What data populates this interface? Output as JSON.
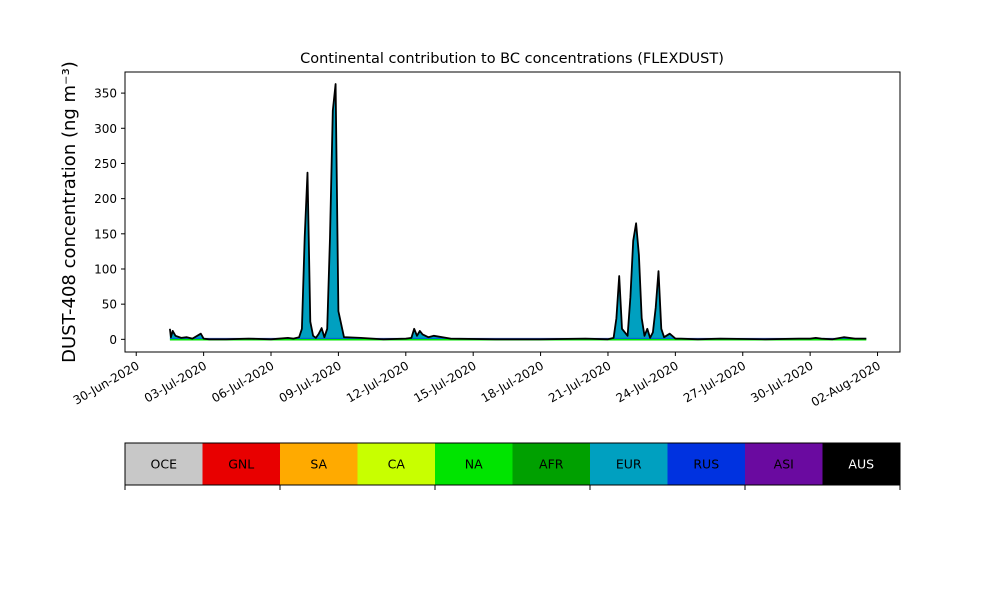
{
  "chart_data": {
    "type": "area",
    "title": "Continental contribution to BC concentrations (FLEXDUST)",
    "ylabel": "DUST-408 concentration (ng m⁻³)",
    "xlabel": "",
    "ylim": [
      -18,
      380
    ],
    "xlim": [
      "2020-06-29T12:00",
      "2020-08-03T00:00"
    ],
    "yticks": [
      0,
      50,
      100,
      150,
      200,
      250,
      300,
      350
    ],
    "xticks": [
      "30-Jun-2020",
      "03-Jul-2020",
      "06-Jul-2020",
      "09-Jul-2020",
      "12-Jul-2020",
      "15-Jul-2020",
      "18-Jul-2020",
      "21-Jul-2020",
      "24-Jul-2020",
      "27-Jul-2020",
      "30-Jul-2020",
      "02-Aug-2020"
    ],
    "dominant_series": "EUR",
    "x": [
      "2020-07-01T12:00",
      "2020-07-01T13:00",
      "2020-07-01T15:00",
      "2020-07-01T18:00",
      "2020-07-02T00:00",
      "2020-07-02T06:00",
      "2020-07-02T12:00",
      "2020-07-02T21:00",
      "2020-07-03T00:00",
      "2020-07-03T06:00",
      "2020-07-04T00:00",
      "2020-07-05T00:00",
      "2020-07-06T00:00",
      "2020-07-06T18:00",
      "2020-07-07T00:00",
      "2020-07-07T06:00",
      "2020-07-07T09:00",
      "2020-07-07T12:00",
      "2020-07-07T15:00",
      "2020-07-07T18:00",
      "2020-07-07T21:00",
      "2020-07-08T00:00",
      "2020-07-08T03:00",
      "2020-07-08T06:00",
      "2020-07-08T09:00",
      "2020-07-08T12:00",
      "2020-07-08T15:00",
      "2020-07-08T18:00",
      "2020-07-08T21:00",
      "2020-07-09T00:00",
      "2020-07-09T06:00",
      "2020-07-10T00:00",
      "2020-07-11T00:00",
      "2020-07-12T00:00",
      "2020-07-12T06:00",
      "2020-07-12T09:00",
      "2020-07-12T12:00",
      "2020-07-12T15:00",
      "2020-07-12T18:00",
      "2020-07-13T00:00",
      "2020-07-13T06:00",
      "2020-07-14T00:00",
      "2020-07-16T00:00",
      "2020-07-18T00:00",
      "2020-07-20T00:00",
      "2020-07-21T00:00",
      "2020-07-21T06:00",
      "2020-07-21T09:00",
      "2020-07-21T12:00",
      "2020-07-21T15:00",
      "2020-07-21T21:00",
      "2020-07-22T00:00",
      "2020-07-22T03:00",
      "2020-07-22T06:00",
      "2020-07-22T09:00",
      "2020-07-22T12:00",
      "2020-07-22T15:00",
      "2020-07-22T18:00",
      "2020-07-22T21:00",
      "2020-07-23T00:00",
      "2020-07-23T03:00",
      "2020-07-23T06:00",
      "2020-07-23T09:00",
      "2020-07-23T12:00",
      "2020-07-23T18:00",
      "2020-07-24T00:00",
      "2020-07-24T06:00",
      "2020-07-25T00:00",
      "2020-07-26T00:00",
      "2020-07-28T00:00",
      "2020-07-29T12:00",
      "2020-07-30T00:00",
      "2020-07-30T06:00",
      "2020-07-30T12:00",
      "2020-07-31T00:00",
      "2020-07-31T12:00",
      "2020-08-01T00:00",
      "2020-08-01T12:00"
    ],
    "total": [
      15,
      3,
      12,
      5,
      2,
      3,
      1,
      8,
      1,
      0,
      0,
      1,
      0,
      2,
      1,
      3,
      15,
      145,
      237,
      25,
      5,
      2,
      8,
      16,
      3,
      15,
      145,
      325,
      363,
      40,
      3,
      2,
      0,
      1,
      2,
      15,
      5,
      12,
      7,
      3,
      5,
      1,
      0,
      0,
      1,
      0,
      2,
      30,
      90,
      15,
      5,
      60,
      140,
      165,
      120,
      30,
      5,
      15,
      2,
      10,
      45,
      97,
      15,
      3,
      8,
      1,
      1,
      0,
      1,
      0,
      1,
      1,
      2,
      1,
      0,
      3,
      1,
      1
    ],
    "series_colors": {
      "OCE": "#c8c8c8",
      "GNL": "#e80000",
      "SA": "#ffaa00",
      "CA": "#c8ff00",
      "NA": "#00e400",
      "AFR": "#00a000",
      "EUR": "#00a0c0",
      "RUS": "#0032e0",
      "ASI": "#6a0aa0",
      "AUS": "#000000"
    },
    "legend": [
      {
        "name": "OCE",
        "color": "#c8c8c8",
        "text_color": "#000000"
      },
      {
        "name": "GNL",
        "color": "#e80000",
        "text_color": "#000000"
      },
      {
        "name": "SA",
        "color": "#ffaa00",
        "text_color": "#000000"
      },
      {
        "name": "CA",
        "color": "#c8ff00",
        "text_color": "#000000"
      },
      {
        "name": "NA",
        "color": "#00e400",
        "text_color": "#000000"
      },
      {
        "name": "AFR",
        "color": "#00a000",
        "text_color": "#000000"
      },
      {
        "name": "EUR",
        "color": "#00a0c0",
        "text_color": "#000000"
      },
      {
        "name": "RUS",
        "color": "#0032e0",
        "text_color": "#000000"
      },
      {
        "name": "ASI",
        "color": "#6a0aa0",
        "text_color": "#000000"
      },
      {
        "name": "AUS",
        "color": "#000000",
        "text_color": "#ffffff"
      }
    ]
  }
}
